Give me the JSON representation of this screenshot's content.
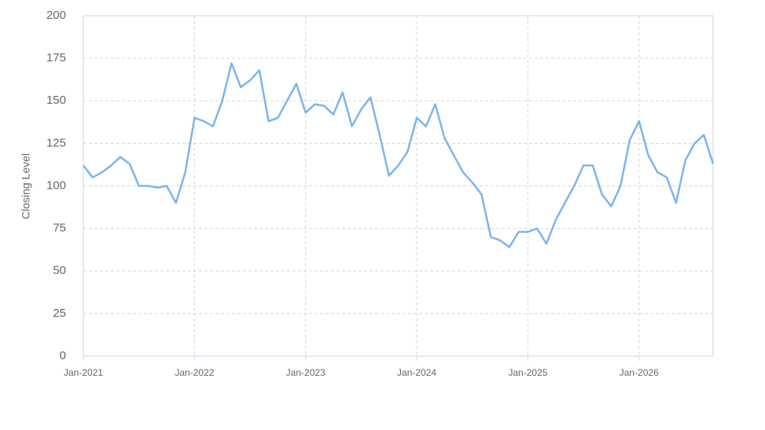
{
  "chart_data": {
    "type": "line",
    "y_label": "Closing Level",
    "x": [
      "2021-01",
      "2021-02",
      "2021-03",
      "2021-04",
      "2021-05",
      "2021-06",
      "2021-07",
      "2021-08",
      "2021-09",
      "2021-10",
      "2021-11",
      "2021-12",
      "2022-01",
      "2022-02",
      "2022-03",
      "2022-04",
      "2022-05",
      "2022-06",
      "2022-07",
      "2022-08",
      "2022-09",
      "2022-10",
      "2022-11",
      "2022-12",
      "2023-01",
      "2023-02",
      "2023-03",
      "2023-04",
      "2023-05",
      "2023-06",
      "2023-07",
      "2023-08",
      "2023-09",
      "2023-10",
      "2023-11",
      "2023-12",
      "2024-01",
      "2024-02",
      "2024-03",
      "2024-04",
      "2024-05",
      "2024-06",
      "2024-07",
      "2024-08",
      "2024-09",
      "2024-10",
      "2024-11",
      "2024-12",
      "2025-01",
      "2025-02",
      "2025-03",
      "2025-04",
      "2025-05",
      "2025-06",
      "2025-07",
      "2025-08",
      "2025-09",
      "2025-10",
      "2025-11",
      "2025-12",
      "2026-01",
      "2026-02",
      "2026-03",
      "2026-04",
      "2026-05",
      "2026-06",
      "2026-07",
      "2026-08",
      "2026-09"
    ],
    "series": [
      {
        "color": "#7cb5ec",
        "values": [
          112,
          105,
          108,
          112,
          117,
          113,
          100,
          100,
          99,
          100,
          90,
          108,
          140,
          138,
          135,
          150,
          172,
          158,
          162,
          168,
          138,
          140,
          150,
          160,
          143,
          148,
          147,
          142,
          155,
          135,
          145,
          152,
          130,
          106,
          112,
          120,
          140,
          135,
          148,
          128,
          118,
          108,
          102,
          95,
          70,
          68,
          64,
          73,
          73,
          75,
          66,
          80,
          90,
          100,
          112,
          112,
          95,
          88,
          100,
          127,
          138,
          118,
          108,
          105,
          90,
          115,
          125,
          130,
          113
        ]
      }
    ],
    "xlim": [
      "2021-01",
      "2026-09"
    ],
    "xticks": [
      {
        "value": "2021-01",
        "label": "Jan-2021"
      },
      {
        "value": "2022-01",
        "label": "Jan-2022"
      },
      {
        "value": "2023-01",
        "label": "Jan-2023"
      },
      {
        "value": "2024-01",
        "label": "Jan-2024"
      },
      {
        "value": "2025-01",
        "label": "Jan-2025"
      },
      {
        "value": "2026-01",
        "label": "Jan-2026"
      }
    ],
    "ylim": [
      0,
      200
    ],
    "yticks": [
      0,
      25,
      50,
      75,
      100,
      125,
      150,
      175,
      200
    ],
    "grid": true
  }
}
